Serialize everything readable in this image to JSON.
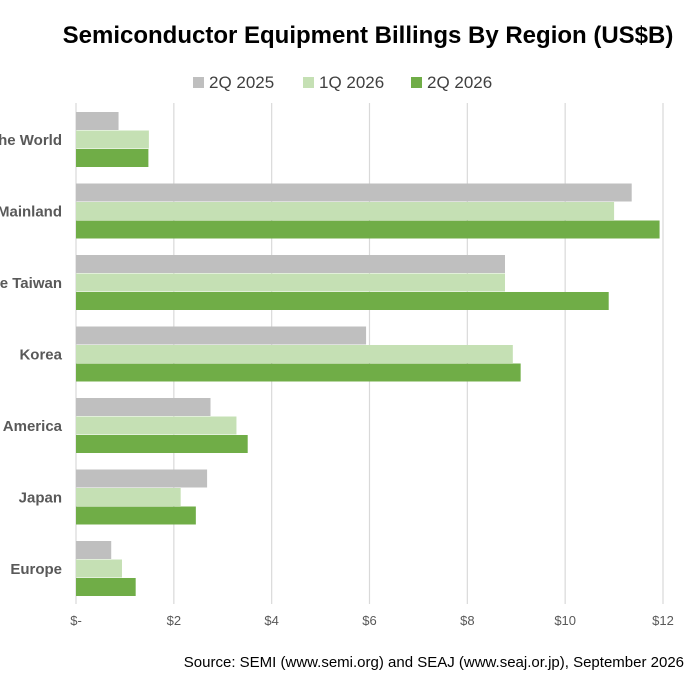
{
  "chart_data": {
    "type": "bar",
    "orientation": "horizontal",
    "title": "Semiconductor Equipment Billings By Region (US$B)",
    "categories": [
      "Rest of the World",
      "China Mainland",
      "Chinese Taiwan",
      "Korea",
      "North America",
      "Japan",
      "Europe"
    ],
    "category_labels": [
      "he World",
      "Mainland",
      "e Taiwan",
      "Korea",
      "America",
      "Japan",
      "Europe"
    ],
    "series": [
      {
        "name": "2Q 2025",
        "color": "#bfbfbf",
        "values": [
          0.87,
          11.36,
          8.77,
          5.93,
          2.75,
          2.68,
          0.72
        ]
      },
      {
        "name": "1Q 2026",
        "color": "#c5e0b4",
        "values": [
          1.49,
          11.0,
          8.77,
          8.93,
          3.28,
          2.14,
          0.94
        ]
      },
      {
        "name": "2Q 2026",
        "color": "#70ad47",
        "values": [
          1.48,
          11.93,
          10.89,
          9.09,
          3.51,
          2.45,
          1.22
        ]
      }
    ],
    "xlim": [
      0,
      12
    ],
    "x_ticks": [
      0,
      2,
      4,
      6,
      8,
      10,
      12
    ],
    "x_tick_labels": [
      "$-",
      "$2",
      "$4",
      "$6",
      "$8",
      "$10",
      "$12"
    ],
    "grid": true,
    "legend": "top-center",
    "source": "Source: SEMI (www.semi.org) and SEAJ (www.seaj.or.jp), September 2026"
  }
}
